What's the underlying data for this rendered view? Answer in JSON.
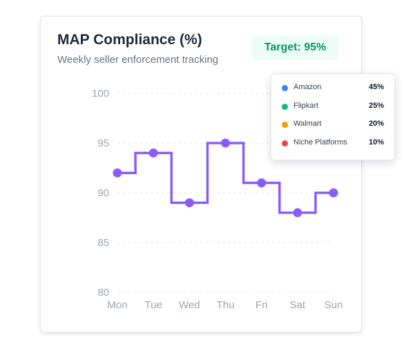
{
  "card": {
    "title": "MAP Compliance (%)",
    "subtitle": "Weekly seller enforcement tracking",
    "target_label": "Target: 95%"
  },
  "legend": {
    "items": [
      {
        "name": "Amazon",
        "value": "45%",
        "color": "#3b82f6"
      },
      {
        "name": "Flipkart",
        "value": "25%",
        "color": "#10b981"
      },
      {
        "name": "Walmart",
        "value": "20%",
        "color": "#f59e0b"
      },
      {
        "name": "Niche Platforms",
        "value": "10%",
        "color": "#ef4444"
      }
    ]
  },
  "chart_data": {
    "type": "line",
    "step": "middle",
    "categories": [
      "Mon",
      "Tue",
      "Wed",
      "Thu",
      "Fri",
      "Sat",
      "Sun"
    ],
    "values": [
      92,
      94,
      89,
      95,
      91,
      88,
      90
    ],
    "title": "MAP Compliance (%)",
    "subtitle": "Weekly seller enforcement tracking",
    "xlabel": "",
    "ylabel": "",
    "ylim": [
      80,
      100
    ],
    "yticks": [
      80,
      85,
      90,
      95,
      100
    ],
    "grid": true,
    "line_color": "#8b5cf6",
    "legend_position": "top-right"
  }
}
